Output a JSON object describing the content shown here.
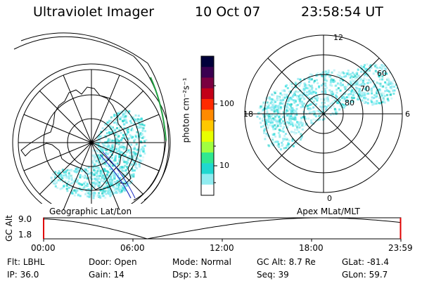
{
  "header": {
    "instrument": "Ultraviolet Imager",
    "date": "10 Oct 07",
    "time": "23:58:54 UT"
  },
  "left_panel": {
    "caption": "Geographic Lat/Lon"
  },
  "right_panel": {
    "caption": "Apex MLat/MLT",
    "mlt_labels": {
      "top": "12",
      "left": "18",
      "right": "6",
      "bottom": "0"
    },
    "lat_labels": [
      "60",
      "70",
      "80"
    ]
  },
  "colorbar": {
    "unit_label": "photon cm⁻²s⁻¹",
    "ticks": [
      "100",
      "10"
    ],
    "colors": [
      "#00003a",
      "#3a0050",
      "#7a0040",
      "#c20018",
      "#ff2a00",
      "#ff8a00",
      "#ffc800",
      "#e8ff00",
      "#a0ff40",
      "#30e890",
      "#20d8d0",
      "#90ecf0",
      "#ffffff"
    ]
  },
  "altitude_strip": {
    "ylabel": "GC Alt",
    "y_ticks": [
      "9.0",
      "1.8"
    ],
    "x_ticks": [
      "00:00",
      "06:00",
      "12:00",
      "18:00",
      "23:59"
    ],
    "ylim": [
      1.8,
      9.0
    ],
    "current_alt": 8.7,
    "current_fraction": 0.999
  },
  "info": {
    "row1": [
      {
        "label": "Flt:",
        "value": "LBHL"
      },
      {
        "label": "Door:",
        "value": "Open"
      },
      {
        "label": "Mode:",
        "value": "Normal"
      },
      {
        "label": "GC Alt:",
        "value": "8.7 Re"
      },
      {
        "label": "GLat:",
        "value": "-81.4"
      }
    ],
    "row2": [
      {
        "label": "IP:",
        "value": "36.0"
      },
      {
        "label": "Gain:",
        "value": "14"
      },
      {
        "label": "Dsp:",
        "value": "3.1"
      },
      {
        "label": "Seq:",
        "value": "39"
      },
      {
        "label": "GLon:",
        "value": "59.7"
      }
    ]
  }
}
